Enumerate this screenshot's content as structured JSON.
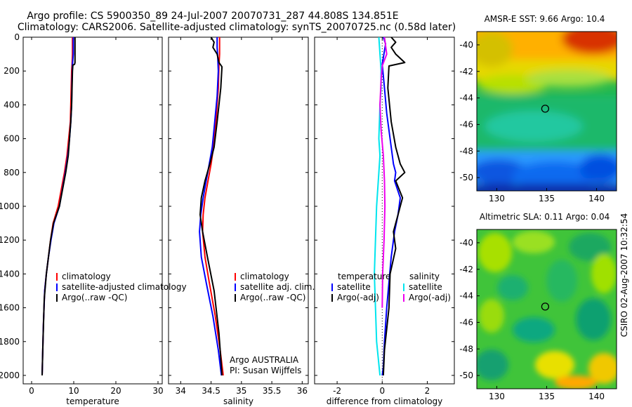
{
  "title": {
    "line1": "Argo profile: CS 5900350_89 24-Jul-2007 20070731_287 44.808S 134.851E",
    "line2": "Climatology: CARS2006. Satellite-adjusted climatology: synTS_20070725.nc (0.58d later)"
  },
  "side_label": "CSIRO 02-Aug-2007 10:32:54",
  "colors": {
    "climatology": "#ff0000",
    "satellite": "#0000ff",
    "argo": "#000000",
    "sat_salinity": "#00e5ee",
    "argo_adj_salinity": "#ee00ee"
  },
  "chart_data": [
    {
      "id": "temperature",
      "type": "line",
      "xlabel": "temperature",
      "ylabel": "",
      "xlim": [
        -2,
        31
      ],
      "ylim": [
        2050,
        0
      ],
      "xticks": [
        0,
        10,
        20,
        30
      ],
      "yticks": [
        0,
        200,
        400,
        600,
        800,
        1000,
        1200,
        1400,
        1600,
        1800,
        2000
      ],
      "show_yticklabels": true,
      "legend": {
        "position": "lower-middle",
        "entries": [
          "climatology",
          "satellite-adjusted climatology",
          "Argo(..raw -QC)"
        ]
      },
      "series": [
        {
          "name": "climatology",
          "color": "#ff0000",
          "x": [
            9.7,
            9.7,
            9.6,
            9.5,
            9.4,
            9.3,
            9.2,
            8.8,
            8.4,
            7.8,
            6.3,
            5.1,
            4.5,
            4.0,
            3.5,
            3.1,
            2.8,
            2.6,
            2.5
          ],
          "y": [
            0,
            100,
            160,
            200,
            300,
            400,
            500,
            600,
            700,
            800,
            1000,
            1100,
            1200,
            1300,
            1400,
            1500,
            1700,
            1900,
            2000
          ]
        },
        {
          "name": "satellite-adjusted climatology",
          "color": "#0000ff",
          "x": [
            9.9,
            9.9,
            9.7,
            9.6,
            9.5,
            9.3,
            9.0,
            8.6,
            8.0,
            6.6,
            5.3,
            4.6,
            4.0,
            3.5,
            3.1,
            2.8,
            2.6,
            2.5
          ],
          "y": [
            0,
            100,
            160,
            250,
            400,
            500,
            600,
            700,
            800,
            1000,
            1100,
            1200,
            1300,
            1400,
            1500,
            1700,
            1900,
            2000
          ]
        },
        {
          "name": "Argo(..raw -QC)",
          "color": "#000000",
          "x": [
            10.3,
            10.3,
            10.3,
            10.2,
            9.8,
            9.7,
            9.6,
            9.5,
            9.3,
            9.0,
            8.7,
            8.1,
            6.6,
            5.2,
            4.5,
            4.0,
            3.5,
            3.0,
            2.7,
            2.5
          ],
          "y": [
            0,
            100,
            150,
            160,
            165,
            200,
            300,
            400,
            500,
            600,
            700,
            800,
            1000,
            1100,
            1200,
            1300,
            1400,
            1550,
            1800,
            2000
          ]
        }
      ]
    },
    {
      "id": "salinity",
      "type": "line",
      "xlabel": "salinity",
      "ylabel": "",
      "xlim": [
        33.8,
        36.1
      ],
      "ylim": [
        2050,
        0
      ],
      "xticks": [
        34,
        34.5,
        35,
        35.5,
        36
      ],
      "yticks": [
        0,
        200,
        400,
        600,
        800,
        1000,
        1200,
        1400,
        1600,
        1800,
        2000
      ],
      "show_yticklabels": false,
      "legend": {
        "position": "lower-right",
        "entries": [
          "climatology",
          "satellite adj. clim.",
          "Argo(..raw -QC)"
        ]
      },
      "annotation": [
        "Argo AUSTRALIA",
        "PI: Susan Wijffels"
      ],
      "series": [
        {
          "name": "climatology",
          "color": "#ff0000",
          "x": [
            34.64,
            34.64,
            34.63,
            34.62,
            34.58,
            34.54,
            34.5,
            34.45,
            34.4,
            34.37,
            34.36,
            34.4,
            34.47,
            34.57,
            34.65,
            34.7
          ],
          "y": [
            0,
            100,
            170,
            300,
            500,
            650,
            750,
            850,
            950,
            1050,
            1150,
            1300,
            1450,
            1650,
            1850,
            2000
          ]
        },
        {
          "name": "satellite adj. clim.",
          "color": "#0000ff",
          "x": [
            34.6,
            34.6,
            34.61,
            34.62,
            34.6,
            34.56,
            34.52,
            34.47,
            34.42,
            34.37,
            34.33,
            34.31,
            34.34,
            34.42,
            34.53,
            34.62,
            34.67
          ],
          "y": [
            0,
            60,
            120,
            200,
            350,
            500,
            650,
            750,
            850,
            950,
            1050,
            1150,
            1300,
            1450,
            1650,
            1850,
            2000
          ]
        },
        {
          "name": "Argo(..raw -QC)",
          "color": "#000000",
          "x": [
            34.5,
            34.55,
            34.53,
            34.6,
            34.63,
            34.68,
            34.66,
            34.6,
            34.55,
            34.48,
            34.4,
            34.34,
            34.32,
            34.36,
            34.44,
            34.55,
            34.63,
            34.68
          ],
          "y": [
            0,
            30,
            60,
            100,
            150,
            175,
            300,
            500,
            650,
            750,
            850,
            950,
            1050,
            1150,
            1300,
            1500,
            1750,
            2000
          ]
        }
      ]
    },
    {
      "id": "difference",
      "type": "line",
      "xlabel": "difference from climatology",
      "ylabel": "",
      "xlim": [
        -3,
        3.2
      ],
      "ylim": [
        2050,
        0
      ],
      "xticks": [
        -2,
        0,
        2
      ],
      "yticks": [
        0,
        200,
        400,
        600,
        800,
        1000,
        1200,
        1400,
        1600,
        1800,
        2000
      ],
      "show_yticklabels": false,
      "legend": {
        "position": "lower-middle",
        "columns": [
          {
            "heading": "temperature",
            "entries": [
              "satellite",
              "Argo(-adj)"
            ]
          },
          {
            "heading": "salinity",
            "entries": [
              "satellite",
              "Argo(-adj)"
            ]
          }
        ]
      },
      "series": [
        {
          "name": "temperature satellite",
          "color": "#0000ff",
          "x": [
            0.05,
            0.15,
            0.1,
            0.0,
            0.1,
            0.2,
            0.3,
            0.4,
            0.5,
            0.6,
            0.55,
            0.8,
            0.7,
            0.55,
            0.4,
            0.3,
            0.2,
            0.1,
            0.05,
            0.0
          ],
          "y": [
            0,
            40,
            80,
            160,
            300,
            450,
            550,
            650,
            750,
            800,
            850,
            950,
            1050,
            1150,
            1300,
            1450,
            1600,
            1800,
            1950,
            2000
          ]
        },
        {
          "name": "temperature Argo(-adj)",
          "color": "#000000",
          "x": [
            0.4,
            0.6,
            0.4,
            0.6,
            1.0,
            0.3,
            0.25,
            0.4,
            0.6,
            0.8,
            1.0,
            0.6,
            0.9,
            0.7,
            0.5,
            0.6,
            0.35,
            0.3,
            0.1,
            0.05
          ],
          "y": [
            0,
            30,
            60,
            100,
            150,
            170,
            300,
            500,
            650,
            750,
            800,
            850,
            950,
            1050,
            1150,
            1250,
            1400,
            1600,
            1850,
            2000
          ]
        },
        {
          "name": "salinity satellite",
          "color": "#00e5ee",
          "x": [
            -0.15,
            -0.1,
            -0.05,
            -0.05,
            -0.1,
            -0.15,
            -0.1,
            -0.15,
            -0.2,
            -0.25,
            -0.3,
            -0.35,
            -0.3,
            -0.25,
            -0.1
          ],
          "y": [
            0,
            100,
            200,
            300,
            400,
            600,
            700,
            800,
            900,
            1000,
            1200,
            1400,
            1600,
            1800,
            2000
          ]
        },
        {
          "name": "salinity Argo(-adj)",
          "color": "#ee00ee",
          "x": [
            0.1,
            0.2,
            0.0,
            -0.05,
            -0.1,
            -0.05,
            0.05,
            0.1,
            0.12,
            0.08,
            0.02,
            0.0
          ],
          "y": [
            0,
            100,
            170,
            250,
            400,
            550,
            700,
            850,
            1000,
            1200,
            1400,
            1600
          ]
        }
      ]
    },
    {
      "id": "sst_map",
      "type": "heatmap",
      "title": "AMSR-E SST: 9.66 Argo: 10.4",
      "xlim": [
        128,
        142
      ],
      "ylim": [
        -51,
        -39
      ],
      "xticks": [
        130,
        135,
        140
      ],
      "yticks": [
        -50,
        -48,
        -46,
        -44,
        -42,
        -40
      ],
      "marker": {
        "lon": 134.851,
        "lat": -44.808
      }
    },
    {
      "id": "sla_map",
      "type": "heatmap",
      "title": "Altimetric SLA: 0.11 Argo: 0.04",
      "xlim": [
        128,
        142
      ],
      "ylim": [
        -51,
        -39
      ],
      "xticks": [
        130,
        135,
        140
      ],
      "yticks": [
        -50,
        -48,
        -46,
        -44,
        -42,
        -40
      ],
      "marker": {
        "lon": 134.851,
        "lat": -44.808
      }
    }
  ]
}
